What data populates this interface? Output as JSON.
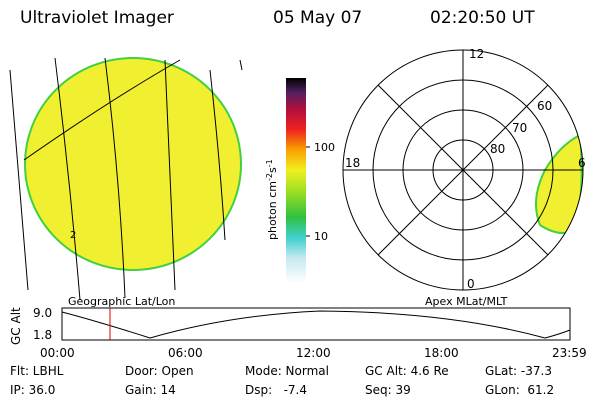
{
  "header": {
    "instrument": "Ultraviolet Imager",
    "date": "05 May 07",
    "time": "02:20:50 UT"
  },
  "colorbar": {
    "unit": "photon cm",
    "exp1": "-2",
    "unit2": "s",
    "exp2": "-1",
    "ticks": [
      "100",
      "10"
    ]
  },
  "polar": {
    "mlt_labels": [
      "12",
      "18",
      "6",
      "0"
    ],
    "mlat_labels": [
      "60",
      "70",
      "80"
    ]
  },
  "panels": {
    "left": "Geographic Lat/Lon",
    "right": "Apex MLat/MLT"
  },
  "orbit": {
    "axis_label": "GC Alt",
    "yticks": [
      "9.0",
      "1.8"
    ],
    "xticks": [
      "00:00",
      "06:00",
      "12:00",
      "18:00",
      "23:59"
    ]
  },
  "footer": {
    "rows": [
      [
        "Flt: LBHL",
        "Door: Open",
        "Mode: Normal",
        "GC Alt: 4.6 Re",
        "GLat: -37.3"
      ],
      [
        "IP: 36.0",
        "Gain: 14",
        "Dsp:   -7.4",
        "Seq: 39",
        "GLon:  61.2"
      ]
    ]
  }
}
